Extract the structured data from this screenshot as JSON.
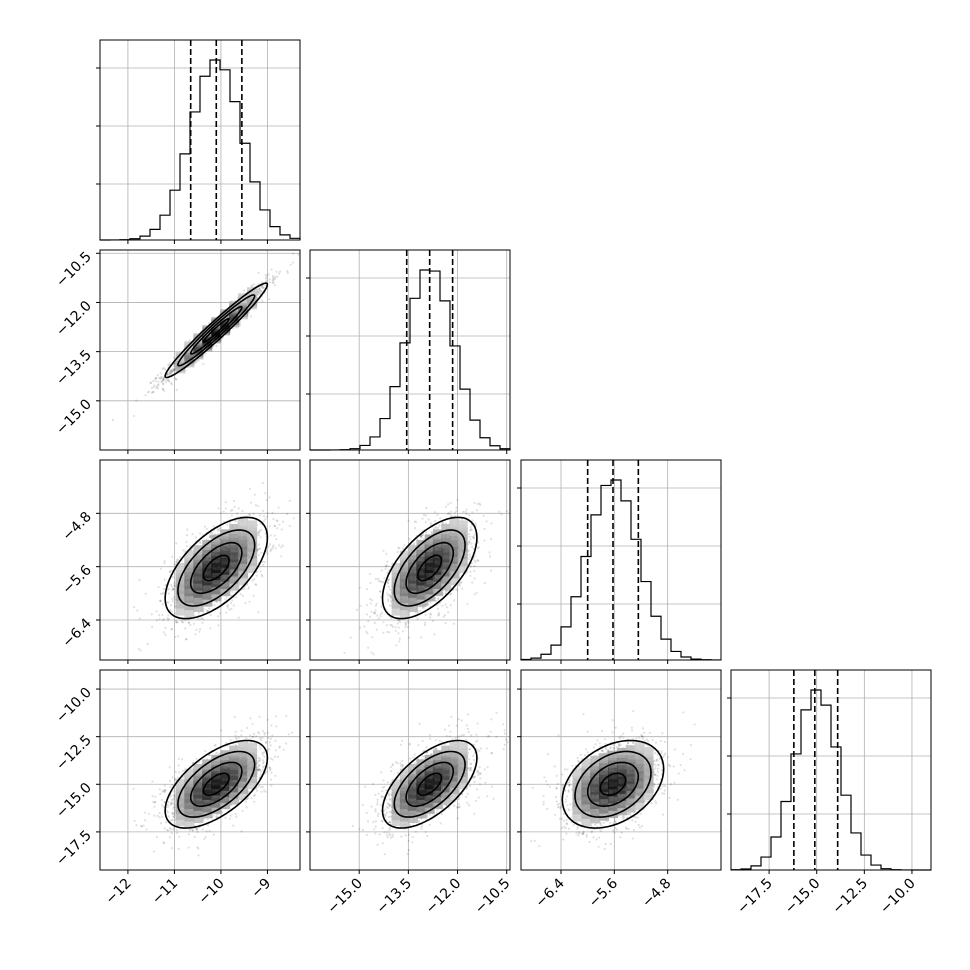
{
  "chart_data": {
    "type": "corner",
    "parameters": [
      {
        "range": [
          -12.6,
          -8.3
        ],
        "mean": -10.1,
        "std": 0.55,
        "quantiles": [
          -10.65,
          -10.1,
          -9.55
        ],
        "ticks": [
          {
            "v": -12,
            "label": "−12"
          },
          {
            "v": -11,
            "label": "−11"
          },
          {
            "v": -10,
            "label": "−10"
          },
          {
            "v": -9,
            "label": "−9"
          }
        ]
      },
      {
        "range": [
          -16.5,
          -10.4
        ],
        "mean": -12.85,
        "std": 0.72,
        "quantiles": [
          -13.55,
          -12.85,
          -12.15
        ],
        "ticks": [
          {
            "v": -15.0,
            "label": "−15.0"
          },
          {
            "v": -13.5,
            "label": "−13.5"
          },
          {
            "v": -12.0,
            "label": "−12.0"
          },
          {
            "v": -10.5,
            "label": "−10.5"
          }
        ]
      },
      {
        "range": [
          -7.0,
          -4.0
        ],
        "mean": -5.62,
        "std": 0.38,
        "quantiles": [
          -6.0,
          -5.62,
          -5.24
        ],
        "ticks": [
          {
            "v": -6.4,
            "label": "−6.4"
          },
          {
            "v": -5.6,
            "label": "−5.6"
          },
          {
            "v": -4.8,
            "label": "−4.8"
          }
        ]
      },
      {
        "range": [
          -19.5,
          -9.0
        ],
        "mean": -15.0,
        "std": 1.15,
        "quantiles": [
          -16.2,
          -15.1,
          -13.9
        ],
        "ticks": [
          {
            "v": -17.5,
            "label": "−17.5"
          },
          {
            "v": -15.0,
            "label": "−15.0"
          },
          {
            "v": -12.5,
            "label": "−12.5"
          },
          {
            "v": -10.0,
            "label": "−10.0"
          }
        ]
      }
    ],
    "correlations": [
      [
        1,
        0.97,
        0.6,
        0.6
      ],
      [
        0.97,
        1,
        0.6,
        0.6
      ],
      [
        0.6,
        0.6,
        1,
        0.35
      ],
      [
        0.6,
        0.6,
        0.35,
        1
      ]
    ],
    "grid": true
  }
}
